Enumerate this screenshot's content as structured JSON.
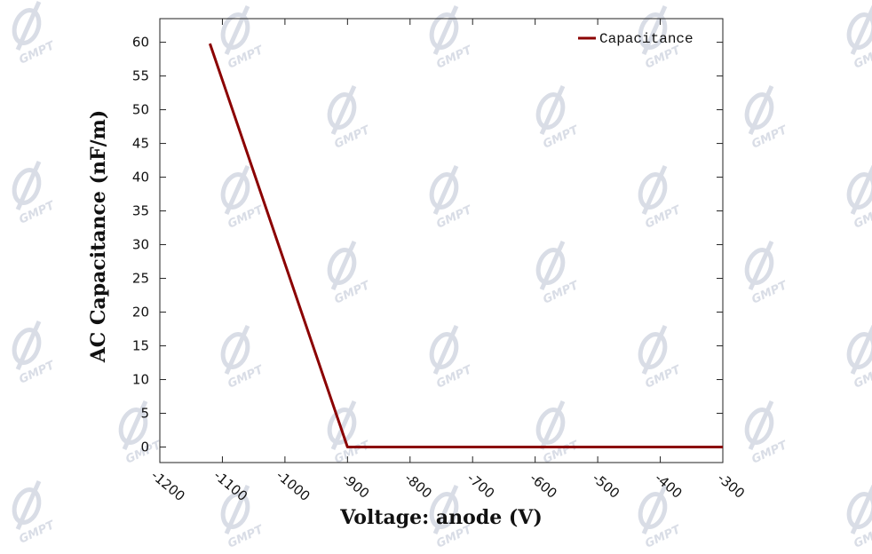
{
  "watermark": {
    "text": "GMPT"
  },
  "chart_data": {
    "type": "line",
    "xlabel": "Voltage: anode (V)",
    "ylabel": "AC Capacitance (nF/m)",
    "xlim": [
      -1200,
      -300
    ],
    "ylim": [
      -2.3,
      63.5
    ],
    "x_ticks": [
      -1200,
      -1100,
      -1000,
      -900,
      -800,
      -700,
      -600,
      -500,
      -400,
      -300
    ],
    "y_ticks": [
      0,
      5,
      10,
      15,
      20,
      25,
      30,
      35,
      40,
      45,
      50,
      55,
      60
    ],
    "legend_position": "top-right",
    "grid": false,
    "series": [
      {
        "name": "Capacitance",
        "color": "#8b0000",
        "x": [
          -1120,
          -900,
          -300
        ],
        "y": [
          59.8,
          0,
          0
        ]
      }
    ]
  }
}
